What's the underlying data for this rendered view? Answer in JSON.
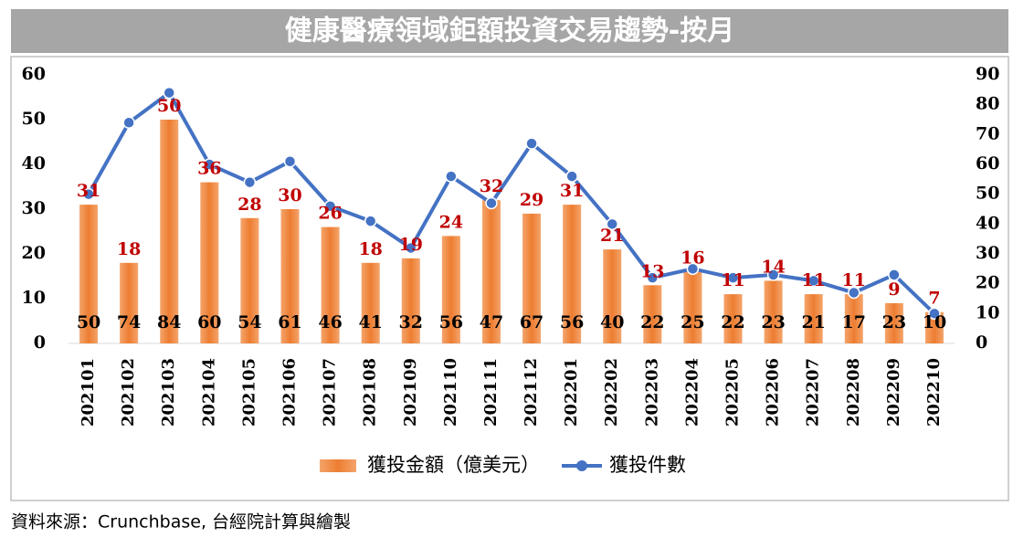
{
  "chart_data": {
    "type": "bar_line",
    "title": "健康醫療領域鉅額投資交易趨勢-按月",
    "source": "資料來源：Crunchbase, 台經院計算與繪製",
    "categories": [
      "202101",
      "202102",
      "202103",
      "202104",
      "202105",
      "202106",
      "202107",
      "202108",
      "202109",
      "202110",
      "202111",
      "202112",
      "202201",
      "202202",
      "202203",
      "202204",
      "202205",
      "202206",
      "202207",
      "202208",
      "202209",
      "202210"
    ],
    "series": [
      {
        "name": "獲投金額（億美元）",
        "color": "#ed7d31",
        "label_color": "#c00000",
        "kind": "bar",
        "axis": "y",
        "values": [
          31,
          18,
          50,
          36,
          28,
          30,
          26,
          18,
          19,
          24,
          32,
          29,
          31,
          21,
          13,
          16,
          11,
          14,
          11,
          11,
          9,
          7
        ]
      },
      {
        "name": "獲投件數",
        "color": "#4472c4",
        "label_color": "#000000",
        "kind": "line",
        "axis": "y2",
        "values": [
          50,
          74,
          84,
          60,
          54,
          61,
          46,
          41,
          32,
          56,
          47,
          67,
          56,
          40,
          22,
          25,
          22,
          23,
          21,
          17,
          23,
          10
        ]
      }
    ],
    "ylim": [
      0,
      60
    ],
    "yticks": [
      0,
      10,
      20,
      30,
      40,
      50,
      60
    ],
    "y2lim": [
      0,
      90
    ],
    "y2ticks": [
      0,
      10,
      20,
      30,
      40,
      50,
      60,
      70,
      80,
      90
    ],
    "legend": "bottom"
  }
}
